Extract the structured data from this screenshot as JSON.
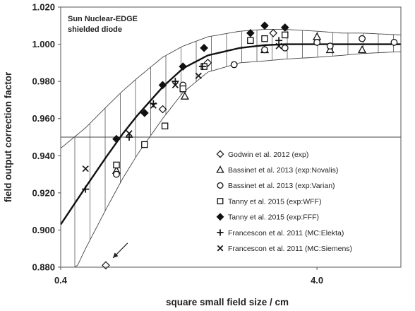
{
  "chart_data": {
    "type": "scatter",
    "annotation": [
      "Sun Nuclear-EDGE",
      "shielded diode"
    ],
    "xlabel": "square small field size / cm",
    "ylabel": "field output correction factor",
    "x_scale": "log",
    "xlim": [
      0.4,
      8.5
    ],
    "ylim": [
      0.88,
      1.02
    ],
    "x_ticks": [
      {
        "value": 0.4,
        "label": "0.4"
      },
      {
        "value": 4.0,
        "label": "4.0"
      }
    ],
    "y_ticks": [
      {
        "value": 0.88,
        "label": "0.880"
      },
      {
        "value": 0.9,
        "label": "0.900"
      },
      {
        "value": 0.92,
        "label": "0.920"
      },
      {
        "value": 0.94,
        "label": "0.940"
      },
      {
        "value": 0.96,
        "label": "0.960"
      },
      {
        "value": 0.98,
        "label": "0.980"
      },
      {
        "value": 1.0,
        "label": "1.000"
      },
      {
        "value": 1.02,
        "label": "1.020"
      }
    ],
    "reference_line_y": 0.95,
    "legend_position": "bottom-right",
    "fit_curve": {
      "x": [
        0.4,
        0.5,
        0.6,
        0.7,
        0.8,
        1.0,
        1.2,
        1.5,
        2.0,
        2.5,
        3.0,
        4.0,
        5.0,
        6.0,
        8.5
      ],
      "y": [
        0.903,
        0.923,
        0.939,
        0.952,
        0.962,
        0.977,
        0.987,
        0.994,
        0.998,
        0.9995,
        1.0,
        1.0,
        1.0,
        1.0,
        1.0
      ]
    },
    "uncertainty_band": {
      "x": [
        0.4,
        0.5,
        0.6,
        0.7,
        0.8,
        1.0,
        1.2,
        1.5,
        2.0,
        2.5,
        3.0,
        4.0,
        5.0,
        6.0,
        8.5
      ],
      "upper": [
        0.944,
        0.955,
        0.966,
        0.975,
        0.982,
        0.993,
        0.999,
        1.004,
        1.007,
        1.008,
        1.008,
        1.007,
        1.006,
        1.006,
        1.005
      ],
      "lower": [
        0.862,
        0.89,
        0.911,
        0.928,
        0.941,
        0.96,
        0.974,
        0.985,
        0.99,
        0.991,
        0.992,
        0.993,
        0.994,
        0.995,
        0.996
      ]
    },
    "series": [
      {
        "name": "Godwin et al. 2012 (exp)",
        "marker": "diamond-open",
        "points": [
          [
            0.6,
            0.881
          ],
          [
            1.0,
            0.965
          ],
          [
            1.5,
            0.99
          ],
          [
            2.7,
            1.006
          ]
        ]
      },
      {
        "name": "Bassinet et al. 2013 (exp:Novalis)",
        "marker": "triangle-open",
        "points": [
          [
            0.66,
            0.932
          ],
          [
            1.22,
            0.972
          ],
          [
            2.5,
            0.997
          ],
          [
            4.0,
            1.004
          ],
          [
            4.5,
            0.997
          ],
          [
            6.0,
            0.997
          ]
        ]
      },
      {
        "name": "Bassinet et al. 2013 (exp:Varian)",
        "marker": "circle-open",
        "points": [
          [
            0.66,
            0.93
          ],
          [
            1.2,
            0.978
          ],
          [
            1.9,
            0.989
          ],
          [
            2.5,
            0.997
          ],
          [
            3.0,
            0.998
          ],
          [
            4.0,
            1.001
          ],
          [
            4.5,
            0.999
          ],
          [
            6.0,
            1.003
          ],
          [
            8.0,
            1.001
          ]
        ]
      },
      {
        "name": "Tanny et al. 2015 (exp:WFF)",
        "marker": "square-open",
        "points": [
          [
            0.66,
            0.935
          ],
          [
            0.85,
            0.946
          ],
          [
            1.02,
            0.956
          ],
          [
            1.2,
            0.976
          ],
          [
            1.45,
            0.988
          ],
          [
            2.2,
            1.002
          ],
          [
            2.5,
            1.003
          ],
          [
            3.0,
            1.005
          ]
        ]
      },
      {
        "name": "Tanny et al. 2015 (exp:FFF)",
        "marker": "diamond-filled",
        "points": [
          [
            0.66,
            0.949
          ],
          [
            0.85,
            0.963
          ],
          [
            1.0,
            0.978
          ],
          [
            1.2,
            0.988
          ],
          [
            1.45,
            0.998
          ],
          [
            2.2,
            1.006
          ],
          [
            2.5,
            1.01
          ],
          [
            3.0,
            1.009
          ]
        ]
      },
      {
        "name": "Francescon et al. 2011 (MC:Elekta)",
        "marker": "plus",
        "points": [
          [
            0.5,
            0.922
          ],
          [
            0.74,
            0.95
          ],
          [
            0.92,
            0.968
          ],
          [
            1.12,
            0.98
          ],
          [
            1.43,
            0.988
          ],
          [
            2.84,
            1.002
          ]
        ]
      },
      {
        "name": "Francescon et al. 2011 (MC:Siemens)",
        "marker": "cross",
        "points": [
          [
            0.5,
            0.933
          ],
          [
            0.74,
            0.952
          ],
          [
            0.92,
            0.967
          ],
          [
            1.12,
            0.978
          ],
          [
            1.38,
            0.983
          ],
          [
            2.84,
            0.999
          ]
        ]
      }
    ],
    "arrow_annotation": {
      "from": [
        0.73,
        0.893
      ],
      "to": [
        0.64,
        0.885
      ]
    }
  }
}
